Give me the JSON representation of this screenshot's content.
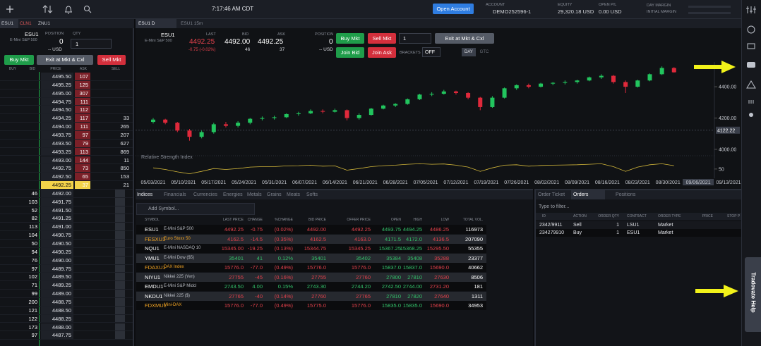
{
  "topbar": {
    "time": "7:17:46 AM CDT",
    "open_account": "Open Account",
    "account_label": "ACCOUNT",
    "account": "DEMO252596-1",
    "equity_label": "EQUITY",
    "equity": "29,320.18 USD",
    "open_pl_label": "OPEN P/L",
    "open_pl": "0.00 USD",
    "day_margin_label": "DAY MARGIN",
    "initial_margin_label": "INITIAL MARGIN"
  },
  "dom": {
    "tabs": [
      "ESU1",
      "CLN1",
      "ZNU1"
    ],
    "symbol": "ESU1",
    "description": "E-Mini S&P 500",
    "position_label": "POSITION",
    "position": "0",
    "position_value": "-- USD",
    "qty_label": "QTY",
    "qty": "1",
    "buy": "Buy Mkt",
    "exit": "Exit at Mkt & Cxl",
    "sell": "Sell Mkt",
    "columns": [
      "BUY",
      "BID",
      "PRICE",
      "ASK",
      "SELL"
    ],
    "ask_rows": [
      {
        "price": "4495.50",
        "ask": "107"
      },
      {
        "price": "4495.25",
        "ask": "125"
      },
      {
        "price": "4495.00",
        "ask": "307"
      },
      {
        "price": "4494.75",
        "ask": "111"
      },
      {
        "price": "4494.50",
        "ask": "112"
      },
      {
        "price": "4494.25",
        "ask": "117",
        "sell": "33"
      },
      {
        "price": "4494.00",
        "ask": "111",
        "sell": "265"
      },
      {
        "price": "4493.75",
        "ask": "97",
        "sell": "207"
      },
      {
        "price": "4493.50",
        "ask": "79",
        "sell": "627"
      },
      {
        "price": "4493.25",
        "ask": "113",
        "sell": "869"
      },
      {
        "price": "4493.00",
        "ask": "144",
        "sell": "11"
      },
      {
        "price": "4492.75",
        "ask": "73",
        "sell": "850"
      },
      {
        "price": "4492.50",
        "ask": "65",
        "sell": "153"
      },
      {
        "price": "4492.25",
        "ask": "37",
        "sell": "21"
      }
    ],
    "bid_rows": [
      {
        "bid": "46",
        "price": "4492.00"
      },
      {
        "bid": "103",
        "price": "4491.75"
      },
      {
        "bid": "52",
        "price": "4491.50"
      },
      {
        "bid": "82",
        "price": "4491.25"
      },
      {
        "bid": "113",
        "price": "4491.00"
      },
      {
        "bid": "104",
        "price": "4490.75"
      },
      {
        "bid": "50",
        "price": "4490.50"
      },
      {
        "bid": "94",
        "price": "4490.25"
      },
      {
        "bid": "76",
        "price": "4490.00"
      },
      {
        "bid": "97",
        "price": "4489.75"
      },
      {
        "bid": "102",
        "price": "4489.50"
      },
      {
        "bid": "71",
        "price": "4489.25"
      },
      {
        "bid": "99",
        "price": "4489.00"
      },
      {
        "bid": "200",
        "price": "4488.75"
      },
      {
        "bid": "121",
        "price": "4488.50"
      },
      {
        "bid": "122",
        "price": "4488.25"
      },
      {
        "bid": "173",
        "price": "4488.00"
      },
      {
        "bid": "97",
        "price": "4487.75"
      }
    ]
  },
  "chart": {
    "tabs": [
      "ESU1 D",
      "ESU1 15m"
    ],
    "symbol": "ESU1",
    "description": "E-Mini S&P 500",
    "last_label": "LAST",
    "last": "4492.25",
    "last_change": "-0.75 (-0.02%)",
    "bid_label": "BID",
    "bid": "4492.00",
    "bid_size": "46",
    "ask_label": "ASK",
    "ask": "4492.25",
    "ask_size": "37",
    "position_label": "POSITION",
    "position": "0",
    "position_value": "-- USD",
    "buy": "Buy Mkt",
    "sell": "Sell Mkt",
    "qty": "1",
    "exit": "Exit at Mkt & Cxl",
    "join_bid": "Join Bid",
    "join_ask": "Join Ask",
    "brackets_label": "BRACKETS",
    "brackets": "OFF",
    "tif": [
      "DAY",
      "GTC"
    ],
    "indicator": "Relative Strength Index",
    "up_color": "#22c55e",
    "down_color": "#e0293b",
    "ylim": [
      3950,
      4540
    ],
    "yticks": [
      {
        "value": 4000,
        "label": "4000.00"
      },
      {
        "value": 4200,
        "label": "4200.00"
      },
      {
        "value": 4400,
        "label": "4400.00"
      }
    ],
    "price_marker": {
      "value": 4122.22,
      "label": "4122.22"
    },
    "candles": [
      [
        4175,
        4200,
        4165,
        4190
      ],
      [
        4190,
        4195,
        4160,
        4170
      ],
      [
        4170,
        4175,
        4110,
        4120
      ],
      [
        4120,
        4130,
        4055,
        4080
      ],
      [
        4080,
        4120,
        4070,
        4110
      ],
      [
        4110,
        4170,
        4100,
        4160
      ],
      [
        4160,
        4175,
        4140,
        4150
      ],
      [
        4150,
        4180,
        4140,
        4170
      ],
      [
        4170,
        4200,
        4160,
        4195
      ],
      [
        4195,
        4210,
        4185,
        4200
      ],
      [
        4200,
        4215,
        4190,
        4205
      ],
      [
        4205,
        4230,
        4200,
        4225
      ],
      [
        4225,
        4240,
        4215,
        4230
      ],
      [
        4230,
        4255,
        4225,
        4245
      ],
      [
        4245,
        4255,
        4230,
        4240
      ],
      [
        4240,
        4260,
        4235,
        4250
      ],
      [
        4250,
        4255,
        4185,
        4200
      ],
      [
        4200,
        4230,
        4190,
        4220
      ],
      [
        4220,
        4265,
        4215,
        4260
      ],
      [
        4260,
        4285,
        4255,
        4280
      ],
      [
        4280,
        4295,
        4270,
        4290
      ],
      [
        4290,
        4325,
        4285,
        4320
      ],
      [
        4320,
        4355,
        4315,
        4350
      ],
      [
        4350,
        4365,
        4340,
        4355
      ],
      [
        4355,
        4380,
        4350,
        4370
      ],
      [
        4370,
        4375,
        4350,
        4360
      ],
      [
        4360,
        4365,
        4320,
        4330
      ],
      [
        4330,
        4335,
        4250,
        4270
      ],
      [
        4270,
        4340,
        4265,
        4330
      ],
      [
        4330,
        4395,
        4325,
        4390
      ],
      [
        4390,
        4415,
        4380,
        4410
      ],
      [
        4410,
        4420,
        4390,
        4400
      ],
      [
        4400,
        4425,
        4395,
        4420
      ],
      [
        4420,
        4430,
        4410,
        4425
      ],
      [
        4425,
        4440,
        4415,
        4430
      ],
      [
        4430,
        4445,
        4420,
        4440
      ],
      [
        4440,
        4465,
        4435,
        4460
      ],
      [
        4460,
        4480,
        4450,
        4470
      ],
      [
        4470,
        4475,
        4420,
        4430
      ],
      [
        4430,
        4440,
        4360,
        4400
      ],
      [
        4400,
        4445,
        4395,
        4440
      ],
      [
        4440,
        4485,
        4435,
        4480
      ],
      [
        4480,
        4530,
        4475,
        4520
      ],
      [
        4520,
        4525,
        4490,
        4492.25
      ]
    ],
    "rsi": [
      55,
      48,
      38,
      30,
      40,
      52,
      48,
      52,
      58,
      60,
      60,
      63,
      64,
      66,
      62,
      63,
      45,
      52,
      60,
      64,
      66,
      70,
      72,
      70,
      71,
      66,
      58,
      40,
      55,
      66,
      68,
      62,
      65,
      66,
      67,
      68,
      70,
      72,
      60,
      40,
      58,
      68,
      72,
      64
    ],
    "rsi_ylim": [
      20,
      85
    ],
    "rsi_yticks": [
      50
    ],
    "rsi_color": "#d4b83a",
    "dates": [
      "05/03/2021",
      "05/10/2021",
      "05/17/2021",
      "05/24/2021",
      "05/31/2021",
      "06/07/2021",
      "06/14/2021",
      "06/21/2021",
      "06/28/2021",
      "07/05/2021",
      "07/12/2021",
      "07/19/2021",
      "07/26/2021",
      "08/02/2021",
      "08/09/2021",
      "08/16/2021",
      "08/23/2021",
      "08/30/2021",
      "09/06/2021",
      "09/13/2021"
    ],
    "highlight_date": 18
  },
  "watchlist": {
    "tabs": [
      "Indices",
      "Financials",
      "Currencies",
      "Energies",
      "Metals",
      "Grains",
      "Meats",
      "Softs"
    ],
    "add_symbol": "Add Symbol...",
    "columns": [
      "SYMBOL",
      "LAST PRICE",
      "CHANGE",
      "%CHANGE",
      "BID PRICE",
      "OFFER PRICE",
      "OPEN",
      "HIGH",
      "LOW",
      "TOTAL VOL."
    ],
    "rows": [
      {
        "symbol": "ESU1",
        "description": "E-Mini S&P 500",
        "last": "4492.25",
        "change": "-0.75",
        "pct": "(0.02%)",
        "bid": "4492.00",
        "offer": "4492.25",
        "open": "4493.75",
        "high": "4494.25",
        "low": "4486.25",
        "volume": "116973"
      },
      {
        "symbol": "FESXU1",
        "description": "Euro Stoxx 50",
        "last": "4162.5",
        "change": "-14.5",
        "pct": "(0.35%)",
        "bid": "4162.5",
        "offer": "4163.0",
        "open": "4171.5",
        "high": "4172.0",
        "low": "4136.5",
        "volume": "207090",
        "symbol_color": "#f5a623"
      },
      {
        "symbol": "NQU1",
        "description": "E-Mini NASDAQ 10",
        "last": "15345.00",
        "change": "-19.25",
        "pct": "(0.13%)",
        "bid": "15344.75",
        "offer": "15345.25",
        "open": "15367.25",
        "high": "15368.25",
        "low": "15295.50",
        "volume": "55355"
      },
      {
        "symbol": "YMU1",
        "description": "E-Mini Dow ($5)",
        "last": "35401",
        "change": "41",
        "pct": "0.12%",
        "bid": "35401",
        "offer": "35402",
        "open": "35384",
        "high": "35408",
        "low": "35288",
        "volume": "23377"
      },
      {
        "symbol": "FDAXU1",
        "description": "DAX Index",
        "last": "15776.0",
        "change": "-77.0",
        "pct": "(0.49%)",
        "bid": "15776.0",
        "offer": "15776.0",
        "open": "15837.0",
        "high": "15837.0",
        "low": "15690.0",
        "volume": "40662",
        "symbol_color": "#f5a623"
      },
      {
        "symbol": "NIYU1",
        "description": "Nikkei 225 (Yen)",
        "last": "27755",
        "change": "-45",
        "pct": "(0.16%)",
        "bid": "27755",
        "offer": "27760",
        "open": "27800",
        "high": "27810",
        "low": "27630",
        "volume": "8506"
      },
      {
        "symbol": "EMDU1",
        "description": "E-Mini S&P Midcl",
        "last": "2743.50",
        "change": "4.00",
        "pct": "0.15%",
        "bid": "2743.30",
        "offer": "2744.20",
        "open": "2742.50",
        "high": "2744.00",
        "low": "2731.20",
        "volume": "181"
      },
      {
        "symbol": "NKDU1",
        "description": "Nikkei 225 ($)",
        "last": "27765",
        "change": "-40",
        "pct": "(0.14%)",
        "bid": "27760",
        "offer": "27765",
        "open": "27810",
        "high": "27820",
        "low": "27640",
        "volume": "1311"
      },
      {
        "symbol": "FDXMU1",
        "description": "Mini-DAX",
        "last": "15776.0",
        "change": "-77.0",
        "pct": "(0.49%)",
        "bid": "15775.0",
        "offer": "15776.0",
        "open": "15835.0",
        "high": "15835.0",
        "low": "15690.0",
        "volume": "34953",
        "symbol_color": "#f5a623"
      }
    ]
  },
  "orders": {
    "tabs": [
      "Order Ticket",
      "Orders",
      "Positions"
    ],
    "filter": "Type to filter...",
    "columns": [
      "ID",
      "ACTION",
      "ORDER QTY",
      "CONTRACT",
      "ORDER TYPE",
      "PRICE",
      "STOP P"
    ],
    "rows": [
      [
        "2342/9911",
        "Sell",
        "1",
        "LSU1",
        "Market"
      ],
      [
        "234279910",
        "Buy",
        "1",
        "ESU1",
        "Market"
      ]
    ]
  },
  "sidebar": {
    "help": "Tradovate Help"
  }
}
